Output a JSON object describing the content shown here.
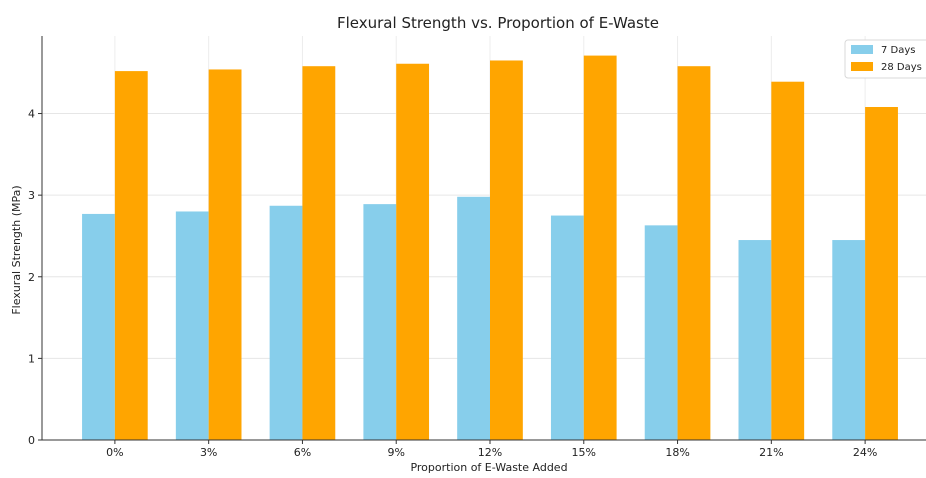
{
  "chart_data": {
    "type": "bar",
    "title": "Flexural Strength vs. Proportion of E-Waste",
    "xlabel": "Proportion of E-Waste Added",
    "ylabel": "Flexural Strength (MPa)",
    "categories": [
      "0%",
      "3%",
      "6%",
      "9%",
      "12%",
      "15%",
      "18%",
      "21%",
      "24%"
    ],
    "series": [
      {
        "name": "7 Days",
        "color": "#87ceeb",
        "values": [
          2.77,
          2.8,
          2.87,
          2.89,
          2.98,
          2.75,
          2.63,
          2.45,
          2.45
        ]
      },
      {
        "name": "28 Days",
        "color": "#ffa500",
        "values": [
          4.52,
          4.54,
          4.58,
          4.61,
          4.65,
          4.71,
          4.58,
          4.39,
          4.08
        ]
      }
    ],
    "ylim": [
      0,
      4.95
    ],
    "yticks": [
      "0",
      "1",
      "2",
      "3",
      "4"
    ],
    "grid": true,
    "legend_position": "top-right"
  }
}
